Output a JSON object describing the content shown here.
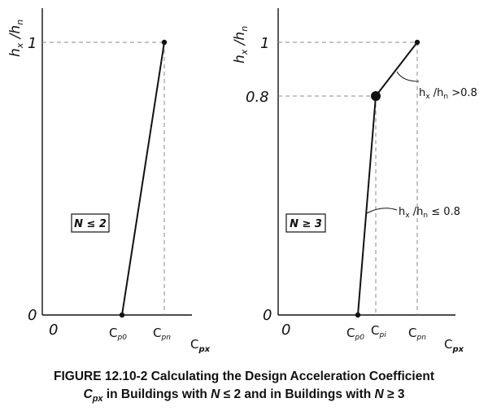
{
  "panels": [
    {
      "y_label": {
        "main": "h",
        "sub1": "x",
        "mid": " /h",
        "sub2": "n"
      },
      "y_ticks": {
        "top": "1",
        "bottom": "0"
      },
      "x_origin": "0",
      "x_ticks": [
        {
          "main": "C",
          "sub": "p0"
        },
        {
          "main": "C",
          "sub": "pn"
        }
      ],
      "x_axis_label": {
        "main": "C",
        "sub": "px"
      },
      "condition": "N ≤ 2"
    },
    {
      "y_label": {
        "main": "h",
        "sub1": "x",
        "mid": " /h",
        "sub2": "n"
      },
      "y_ticks": {
        "top": "1",
        "mid": "0.8",
        "bottom": "0"
      },
      "x_origin": "0",
      "x_ticks": [
        {
          "main": "C",
          "sub": "p0"
        },
        {
          "main": "C",
          "sub": "pi"
        },
        {
          "main": "C",
          "sub": "pn"
        }
      ],
      "x_axis_label": {
        "main": "C",
        "sub": "px"
      },
      "condition": "N ≥ 3",
      "annotations": [
        {
          "main": "h",
          "sub1": "x",
          "mid": " /h",
          "sub2": "n",
          "rel": " >0.8"
        },
        {
          "main": "h",
          "sub1": "x",
          "mid": " /h",
          "sub2": "n",
          "rel": " ≤ 0.8"
        }
      ]
    }
  ],
  "caption": {
    "line1": "FIGURE 12.10-2 Calculating the Design Acceleration Coefficient",
    "line2_sym": "C",
    "line2_sym_sub": "px",
    "line2_rest": " in Buildings with ",
    "line2_n1": "N",
    "line2_mid": " ≤ 2 and in Buildings with ",
    "line2_n2": "N",
    "line2_end": " ≥ 3"
  }
}
